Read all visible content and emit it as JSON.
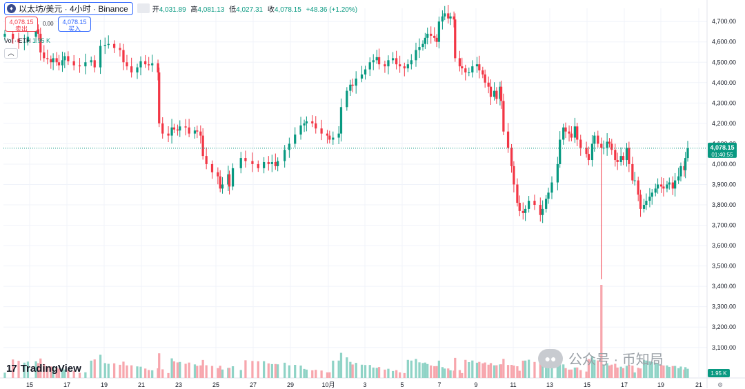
{
  "header": {
    "icon": "eth-icon",
    "symbol": "以太坊/美元 · 4小时 · Binance",
    "open_label": "开",
    "open": "4,031.89",
    "high_label": "高",
    "high": "4,081.13",
    "low_label": "低",
    "low": "4,027.31",
    "close_label": "收",
    "close": "4,078.15",
    "change": "+48.36 (+1.20%)"
  },
  "trade": {
    "sell_price": "4,078.15",
    "sell_label": "卖出",
    "spread": "0.00",
    "buy_price": "4,078.15",
    "buy_label": "买入"
  },
  "volume": {
    "label": "Vol · ETH",
    "value": "1.95 K"
  },
  "collapse_icon": "chevron-up-icon",
  "brand": {
    "mark": "17",
    "name": "TradingView"
  },
  "watermark": "公众号 · 币知局",
  "colors": {
    "up": "#089981",
    "down": "#f23645",
    "up_vol": "#8fd3c6",
    "down_vol": "#f7a6ad",
    "last": "#089981"
  },
  "chart_data": {
    "type": "candlestick",
    "title": "以太坊/美元 · 4小时 · Binance",
    "xlabel": "",
    "ylabel": "",
    "ylim": [
      3045,
      4765
    ],
    "y_ticks": [
      "4,700.00",
      "4,600.00",
      "4,500.00",
      "4,400.00",
      "4,300.00",
      "4,200.00",
      "4,100.00",
      "4,000.00",
      "3,900.00",
      "3,800.00",
      "3,700.00",
      "3,600.00",
      "3,500.00",
      "3,400.00",
      "3,300.00",
      "3,200.00",
      "3,100.00"
    ],
    "x_ticks": [
      "15",
      "17",
      "19",
      "21",
      "23",
      "25",
      "27",
      "29",
      "10月",
      "3",
      "5",
      "7",
      "9",
      "11",
      "13",
      "15",
      "17",
      "19",
      "21"
    ],
    "last_price": {
      "value": "4,078.15",
      "countdown": "01:40:55"
    },
    "volume_last": "1.95 K",
    "candles": [
      [
        0,
        4640
      ],
      [
        7,
        4615
      ],
      [
        12,
        4598
      ],
      [
        17,
        4600
      ],
      [
        20,
        4625
      ],
      [
        27,
        4662
      ],
      [
        29,
        4640
      ],
      [
        31,
        4548
      ],
      [
        34,
        4520
      ],
      [
        37,
        4515
      ],
      [
        40,
        4500
      ],
      [
        42,
        4520
      ],
      [
        45,
        4500
      ],
      [
        47,
        4485
      ],
      [
        50,
        4510
      ],
      [
        52,
        4530
      ],
      [
        55,
        4505
      ],
      [
        60,
        4485
      ],
      [
        65,
        4480
      ],
      [
        70,
        4500
      ],
      [
        75,
        4510
      ],
      [
        78,
        4475
      ],
      [
        83,
        4580
      ],
      [
        87,
        4585
      ],
      [
        90,
        4590
      ],
      [
        95,
        4570
      ],
      [
        100,
        4560
      ],
      [
        103,
        4500
      ],
      [
        106,
        4480
      ],
      [
        110,
        4450
      ],
      [
        115,
        4475
      ],
      [
        118,
        4505
      ],
      [
        122,
        4490
      ],
      [
        125,
        4485
      ],
      [
        128,
        4495
      ],
      [
        133,
        4450
      ],
      [
        134,
        4200
      ],
      [
        137,
        4150
      ],
      [
        142,
        4140
      ],
      [
        145,
        4180
      ],
      [
        147,
        4170
      ],
      [
        150,
        4165
      ],
      [
        152,
        4185
      ],
      [
        157,
        4180
      ],
      [
        160,
        4150
      ],
      [
        165,
        4165
      ],
      [
        167,
        4160
      ],
      [
        170,
        4140
      ],
      [
        172,
        4040
      ],
      [
        175,
        4000
      ],
      [
        180,
        3960
      ],
      [
        185,
        3940
      ],
      [
        187,
        3880
      ],
      [
        189,
        3900
      ],
      [
        194,
        3950
      ],
      [
        195,
        3890
      ],
      [
        198,
        3980
      ],
      [
        205,
        4030
      ],
      [
        209,
        4015
      ],
      [
        215,
        4000
      ],
      [
        220,
        3980
      ],
      [
        225,
        4010
      ],
      [
        229,
        4000
      ],
      [
        232,
        4010
      ],
      [
        235,
        3990
      ],
      [
        237,
        4015
      ],
      [
        243,
        4070
      ],
      [
        247,
        4100
      ],
      [
        252,
        4145
      ],
      [
        257,
        4190
      ],
      [
        260,
        4200
      ],
      [
        262,
        4210
      ],
      [
        267,
        4200
      ],
      [
        270,
        4175
      ],
      [
        275,
        4150
      ],
      [
        280,
        4140
      ],
      [
        282,
        4120
      ],
      [
        285,
        4130
      ],
      [
        290,
        4150
      ],
      [
        292,
        4280
      ],
      [
        297,
        4360
      ],
      [
        300,
        4390
      ],
      [
        302,
        4385
      ],
      [
        305,
        4420
      ],
      [
        310,
        4440
      ],
      [
        313,
        4465
      ],
      [
        317,
        4500
      ],
      [
        320,
        4510
      ],
      [
        323,
        4525
      ],
      [
        325,
        4490
      ],
      [
        330,
        4480
      ],
      [
        333,
        4510
      ],
      [
        337,
        4520
      ],
      [
        340,
        4490
      ],
      [
        343,
        4480
      ],
      [
        347,
        4470
      ],
      [
        350,
        4490
      ],
      [
        353,
        4510
      ],
      [
        357,
        4560
      ],
      [
        360,
        4575
      ],
      [
        363,
        4590
      ],
      [
        365,
        4620
      ],
      [
        367,
        4640
      ],
      [
        370,
        4630
      ],
      [
        373,
        4620
      ],
      [
        375,
        4600
      ],
      [
        377,
        4700
      ],
      [
        380,
        4725
      ],
      [
        382,
        4740
      ],
      [
        385,
        4715
      ],
      [
        387,
        4725
      ],
      [
        390,
        4710
      ],
      [
        391,
        4520
      ],
      [
        395,
        4480
      ],
      [
        397,
        4470
      ],
      [
        400,
        4450
      ],
      [
        403,
        4450
      ],
      [
        406,
        4480
      ],
      [
        410,
        4490
      ],
      [
        412,
        4460
      ],
      [
        415,
        4440
      ],
      [
        417,
        4400
      ],
      [
        420,
        4380
      ],
      [
        422,
        4330
      ],
      [
        425,
        4360
      ],
      [
        427,
        4320
      ],
      [
        430,
        4380
      ],
      [
        431,
        4310
      ],
      [
        433,
        4160
      ],
      [
        437,
        4080
      ],
      [
        440,
        3990
      ],
      [
        442,
        3900
      ],
      [
        445,
        3810
      ],
      [
        447,
        3770
      ],
      [
        450,
        3760
      ],
      [
        452,
        3780
      ],
      [
        455,
        3820
      ],
      [
        460,
        3800
      ],
      [
        465,
        3750
      ],
      [
        467,
        3780
      ],
      [
        470,
        3830
      ],
      [
        472,
        3860
      ],
      [
        475,
        3910
      ],
      [
        480,
        4000
      ],
      [
        482,
        4120
      ],
      [
        485,
        4180
      ],
      [
        487,
        4160
      ],
      [
        490,
        4150
      ],
      [
        492,
        4130
      ],
      [
        495,
        4185
      ],
      [
        497,
        4120
      ],
      [
        500,
        4080
      ],
      [
        505,
        4050
      ],
      [
        507,
        4020
      ],
      [
        510,
        4100
      ],
      [
        512,
        4140
      ],
      [
        515,
        4100
      ],
      [
        518,
        4080
      ],
      [
        520,
        4080
      ],
      [
        523,
        4110
      ],
      [
        525,
        4100
      ],
      [
        527,
        4070
      ],
      [
        530,
        4020
      ],
      [
        532,
        4010
      ],
      [
        535,
        4040
      ],
      [
        537,
        4020
      ],
      [
        540,
        4080
      ],
      [
        542,
        4000
      ],
      [
        545,
        3920
      ],
      [
        547,
        3920
      ],
      [
        550,
        3850
      ],
      [
        552,
        3780
      ],
      [
        555,
        3800
      ],
      [
        557,
        3820
      ],
      [
        560,
        3840
      ],
      [
        562,
        3860
      ],
      [
        565,
        3880
      ],
      [
        567,
        3900
      ],
      [
        570,
        3890
      ],
      [
        572,
        3880
      ],
      [
        575,
        3900
      ],
      [
        577,
        3910
      ],
      [
        580,
        3880
      ],
      [
        582,
        3920
      ],
      [
        585,
        3940
      ],
      [
        587,
        3990
      ],
      [
        590,
        3970
      ],
      [
        591,
        4030
      ],
      [
        593,
        4078.15
      ]
    ]
  }
}
